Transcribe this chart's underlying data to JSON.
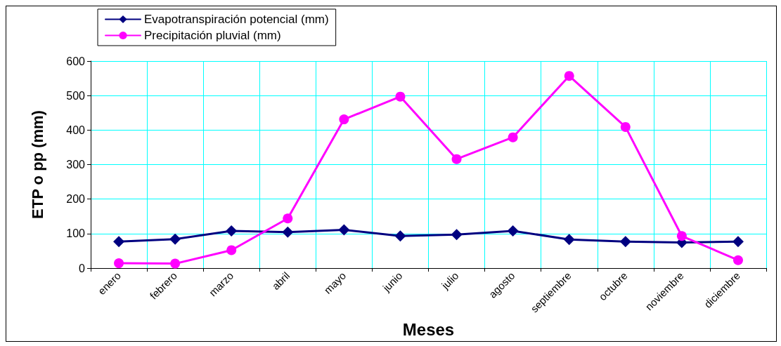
{
  "chart_data": {
    "type": "line",
    "xlabel": "Meses",
    "ylabel": "ETP o pp (mm)",
    "categories": [
      "enero",
      "febrero",
      "marzo",
      "abril",
      "mayo",
      "junio",
      "julio",
      "agosto",
      "septiembre",
      "octubre",
      "noviembre",
      "diciembre"
    ],
    "series": [
      {
        "name": "Evapotranspiración potencial (mm)",
        "color": "#000080",
        "marker": "diamond",
        "values": [
          77,
          84,
          108,
          104,
          111,
          93,
          97,
          108,
          83,
          77,
          74,
          77
        ]
      },
      {
        "name": "Precipitación pluvial (mm)",
        "color": "#ff00ff",
        "marker": "circle",
        "values": [
          14,
          13,
          52,
          144,
          431,
          497,
          316,
          379,
          557,
          409,
          93,
          23
        ]
      }
    ],
    "ylim": [
      0,
      600
    ],
    "yticks": [
      0,
      100,
      200,
      300,
      400,
      500,
      600
    ],
    "grid": true,
    "legend": "top left",
    "line_style": "solid"
  }
}
